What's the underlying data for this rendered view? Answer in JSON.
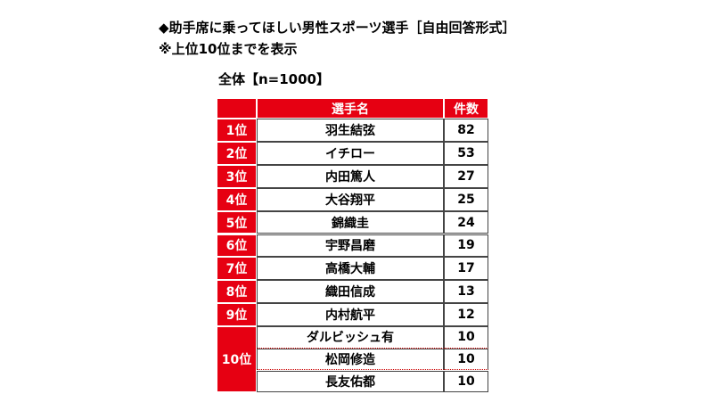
{
  "header": {
    "title": "◆助手席に乗ってほしい男性スポーツ選手［自由回答形式］",
    "note": "※上位10位までを表示"
  },
  "table": {
    "caption": "全体【n=1000】",
    "columns": [
      "選手名",
      "件数"
    ],
    "rows": [
      {
        "rank": "1位",
        "entries": [
          {
            "name": "羽生結弦",
            "count": 82
          }
        ]
      },
      {
        "rank": "2位",
        "entries": [
          {
            "name": "イチロー",
            "count": 53
          }
        ]
      },
      {
        "rank": "3位",
        "entries": [
          {
            "name": "内田篤人",
            "count": 27
          }
        ]
      },
      {
        "rank": "4位",
        "entries": [
          {
            "name": "大谷翔平",
            "count": 25
          }
        ]
      },
      {
        "rank": "5位",
        "entries": [
          {
            "name": "錦織圭",
            "count": 24
          }
        ]
      },
      {
        "rank": "6位",
        "entries": [
          {
            "name": "宇野昌磨",
            "count": 19
          }
        ]
      },
      {
        "rank": "7位",
        "entries": [
          {
            "name": "高橋大輔",
            "count": 17
          }
        ]
      },
      {
        "rank": "8位",
        "entries": [
          {
            "name": "織田信成",
            "count": 13
          }
        ]
      },
      {
        "rank": "9位",
        "entries": [
          {
            "name": "内村航平",
            "count": 12
          }
        ]
      },
      {
        "rank": "10位",
        "entries": [
          {
            "name": "ダルビッシュ有",
            "count": 10
          },
          {
            "name": "松岡修造",
            "count": 10
          },
          {
            "name": "長友佑都",
            "count": 10
          }
        ]
      }
    ]
  }
}
